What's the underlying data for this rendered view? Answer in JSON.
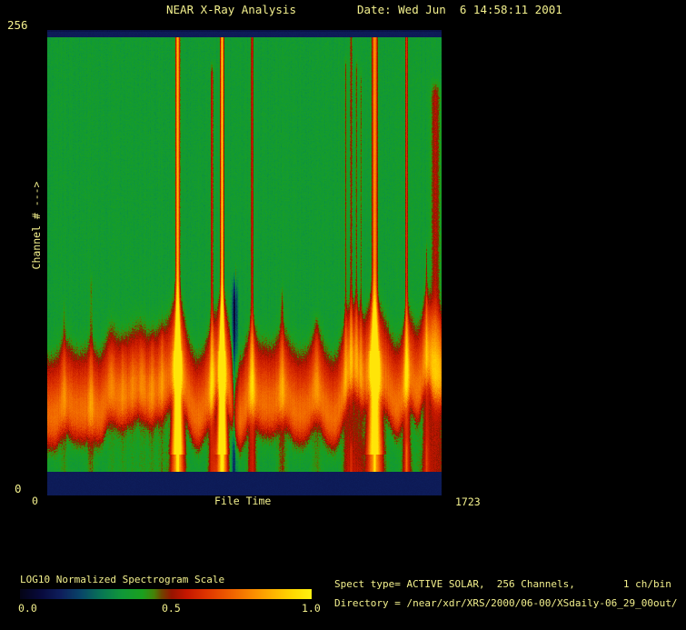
{
  "window": {
    "background": "#000000",
    "text_color": "#f3f08d"
  },
  "header": {
    "title": "NEAR X-Ray Analysis",
    "date_label": "Date: Wed Jun  6 14:58:11 2001"
  },
  "y_axis": {
    "top_tick": "256",
    "bottom_tick": "0",
    "label": "Channel # --->"
  },
  "x_axis": {
    "start_tick": "0",
    "label": "File Time",
    "end_tick": "1723"
  },
  "colorbar": {
    "title": "LOG10 Normalized Spectrogram Scale",
    "tick_labels": [
      "0.0",
      "0.5",
      "1.0"
    ]
  },
  "info": {
    "line1": "Spect type= ACTIVE SOLAR,  256 Channels,        1 ch/bin",
    "line2": "Directory = /near/xdr/XRS/2000/06-00/XSdaily-06_29_00out/"
  },
  "chart_data": {
    "type": "heatmap",
    "subtype": "spectrogram",
    "title": "NEAR X-Ray Analysis",
    "xlabel": "File Time",
    "ylabel": "Channel #",
    "x_range": [
      0,
      1723
    ],
    "y_range": [
      0,
      256
    ],
    "scale_label": "LOG10 Normalized Spectrogram Scale",
    "scale_range": [
      0.0,
      1.0
    ],
    "scale_ticks": [
      0.0,
      0.5,
      1.0
    ],
    "legend_position": "bottom-left",
    "grid": false,
    "background_level": 0.37,
    "blank_level": 0.13,
    "blank_bands_channels": [
      [
        0,
        13
      ],
      [
        252,
        256
      ]
    ],
    "colormap_stops": [
      [
        0.0,
        [
          4,
          4,
          22
        ]
      ],
      [
        0.07,
        [
          8,
          10,
          60
        ]
      ],
      [
        0.14,
        [
          14,
          30,
          92
        ]
      ],
      [
        0.21,
        [
          8,
          70,
          104
        ]
      ],
      [
        0.28,
        [
          8,
          118,
          84
        ]
      ],
      [
        0.35,
        [
          16,
          152,
          56
        ]
      ],
      [
        0.42,
        [
          26,
          160,
          30
        ]
      ],
      [
        0.46,
        [
          70,
          130,
          8
        ]
      ],
      [
        0.485,
        [
          110,
          70,
          0
        ]
      ],
      [
        0.52,
        [
          150,
          20,
          0
        ]
      ],
      [
        0.57,
        [
          196,
          22,
          0
        ]
      ],
      [
        0.64,
        [
          222,
          52,
          0
        ]
      ],
      [
        0.72,
        [
          238,
          94,
          0
        ]
      ],
      [
        0.8,
        [
          250,
          140,
          0
        ]
      ],
      [
        0.88,
        [
          255,
          186,
          0
        ]
      ],
      [
        0.94,
        [
          255,
          218,
          0
        ]
      ],
      [
        1.0,
        [
          255,
          240,
          16
        ]
      ]
    ],
    "band_profile": [
      [
        0.0,
        0.0
      ],
      [
        0.66,
        0.0
      ],
      [
        0.7,
        0.03
      ],
      [
        0.73,
        0.1
      ],
      [
        0.755,
        0.18
      ],
      [
        0.78,
        0.24
      ],
      [
        0.815,
        0.31
      ],
      [
        0.845,
        0.365
      ],
      [
        0.875,
        0.375
      ],
      [
        0.9,
        0.33
      ],
      [
        0.925,
        0.22
      ],
      [
        0.945,
        0.1
      ],
      [
        0.965,
        0.03
      ],
      [
        1.0,
        0.0
      ]
    ],
    "streaks": [
      {
        "t": 71,
        "amp": 0.07,
        "w": 1.2,
        "top": 0.58,
        "rise": 0.02,
        "core": false,
        "tail": false,
        "dip": false
      },
      {
        "t": 190,
        "amp": 0.1,
        "w": 1.2,
        "top": 0.52,
        "rise": 0.03,
        "core": false,
        "tail": false,
        "dip": false
      },
      {
        "t": 278,
        "amp": 0.05,
        "w": 1.5,
        "top": 0.7,
        "rise": 0.035,
        "core": false,
        "tail": false,
        "dip": false
      },
      {
        "t": 329,
        "amp": 0.06,
        "w": 1.5,
        "top": 0.68,
        "rise": 0.04,
        "core": false,
        "tail": false,
        "dip": false
      },
      {
        "t": 373,
        "amp": 0.05,
        "w": 1.3,
        "top": 0.7,
        "rise": 0.03,
        "core": false,
        "tail": false,
        "dip": false
      },
      {
        "t": 413,
        "amp": 0.06,
        "w": 1.4,
        "top": 0.68,
        "rise": 0.045,
        "core": false,
        "tail": false,
        "dip": false
      },
      {
        "t": 456,
        "amp": 0.07,
        "w": 1.5,
        "top": 0.66,
        "rise": 0.05,
        "core": false,
        "tail": false,
        "dip": false
      },
      {
        "t": 500,
        "amp": 0.08,
        "w": 1.6,
        "top": 0.64,
        "rise": 0.045,
        "core": false,
        "tail": false,
        "dip": false
      },
      {
        "t": 568,
        "amp": 0.5,
        "w": 2.2,
        "top": 0.0,
        "rise": 0.15,
        "core": true,
        "tail": true,
        "dip": false
      },
      {
        "t": 718,
        "amp": 0.22,
        "w": 1.4,
        "top": 0.04,
        "rise": 0.05,
        "core": false,
        "tail": false,
        "dip": false
      },
      {
        "t": 762,
        "amp": 0.55,
        "w": 1.8,
        "top": 0.0,
        "rise": 0.13,
        "core": true,
        "tail": true,
        "dip": false
      },
      {
        "t": 818,
        "amp": -0.33,
        "w": 2.2,
        "top": 0.52,
        "rise": 0.0,
        "core": false,
        "tail": false,
        "dip": true
      },
      {
        "t": 822,
        "amp": 0.15,
        "w": 0.6,
        "top": 0.5,
        "rise": 0.0,
        "core": false,
        "tail": true,
        "dip": false
      },
      {
        "t": 893,
        "amp": 0.22,
        "w": 1.5,
        "top": 0.0,
        "rise": 0.06,
        "core": false,
        "tail": false,
        "dip": false
      },
      {
        "t": 1024,
        "amp": 0.12,
        "w": 1.6,
        "top": 0.55,
        "rise": 0.06,
        "core": false,
        "tail": false,
        "dip": false
      },
      {
        "t": 1175,
        "amp": 0.08,
        "w": 1.8,
        "top": 0.62,
        "rise": 0.05,
        "core": false,
        "tail": false,
        "dip": false
      },
      {
        "t": 1302,
        "amp": 0.13,
        "w": 1.3,
        "top": 0.02,
        "rise": 0.05,
        "core": false,
        "tail": false,
        "dip": false
      },
      {
        "t": 1326,
        "amp": 0.16,
        "w": 1.4,
        "top": 0.0,
        "rise": 0.06,
        "core": false,
        "tail": true,
        "dip": false
      },
      {
        "t": 1349,
        "amp": 0.13,
        "w": 1.2,
        "top": 0.02,
        "rise": 0.05,
        "core": false,
        "tail": false,
        "dip": false
      },
      {
        "t": 1369,
        "amp": 0.1,
        "w": 1.1,
        "top": 0.05,
        "rise": 0.04,
        "core": false,
        "tail": false,
        "dip": false
      },
      {
        "t": 1429,
        "amp": 0.45,
        "w": 2.8,
        "top": 0.0,
        "rise": 0.15,
        "core": true,
        "tail": true,
        "dip": false
      },
      {
        "t": 1568,
        "amp": 0.26,
        "w": 1.5,
        "top": 0.0,
        "rise": 0.07,
        "core": false,
        "tail": true,
        "dip": false
      },
      {
        "t": 1655,
        "amp": 0.12,
        "w": 1.2,
        "top": 0.45,
        "rise": 0.05,
        "core": false,
        "tail": true,
        "dip": false
      },
      {
        "t": 1695,
        "amp": 0.17,
        "w": 5.0,
        "top": 0.08,
        "rise": 0.09,
        "core": false,
        "tail": false,
        "dip": false
      }
    ]
  }
}
